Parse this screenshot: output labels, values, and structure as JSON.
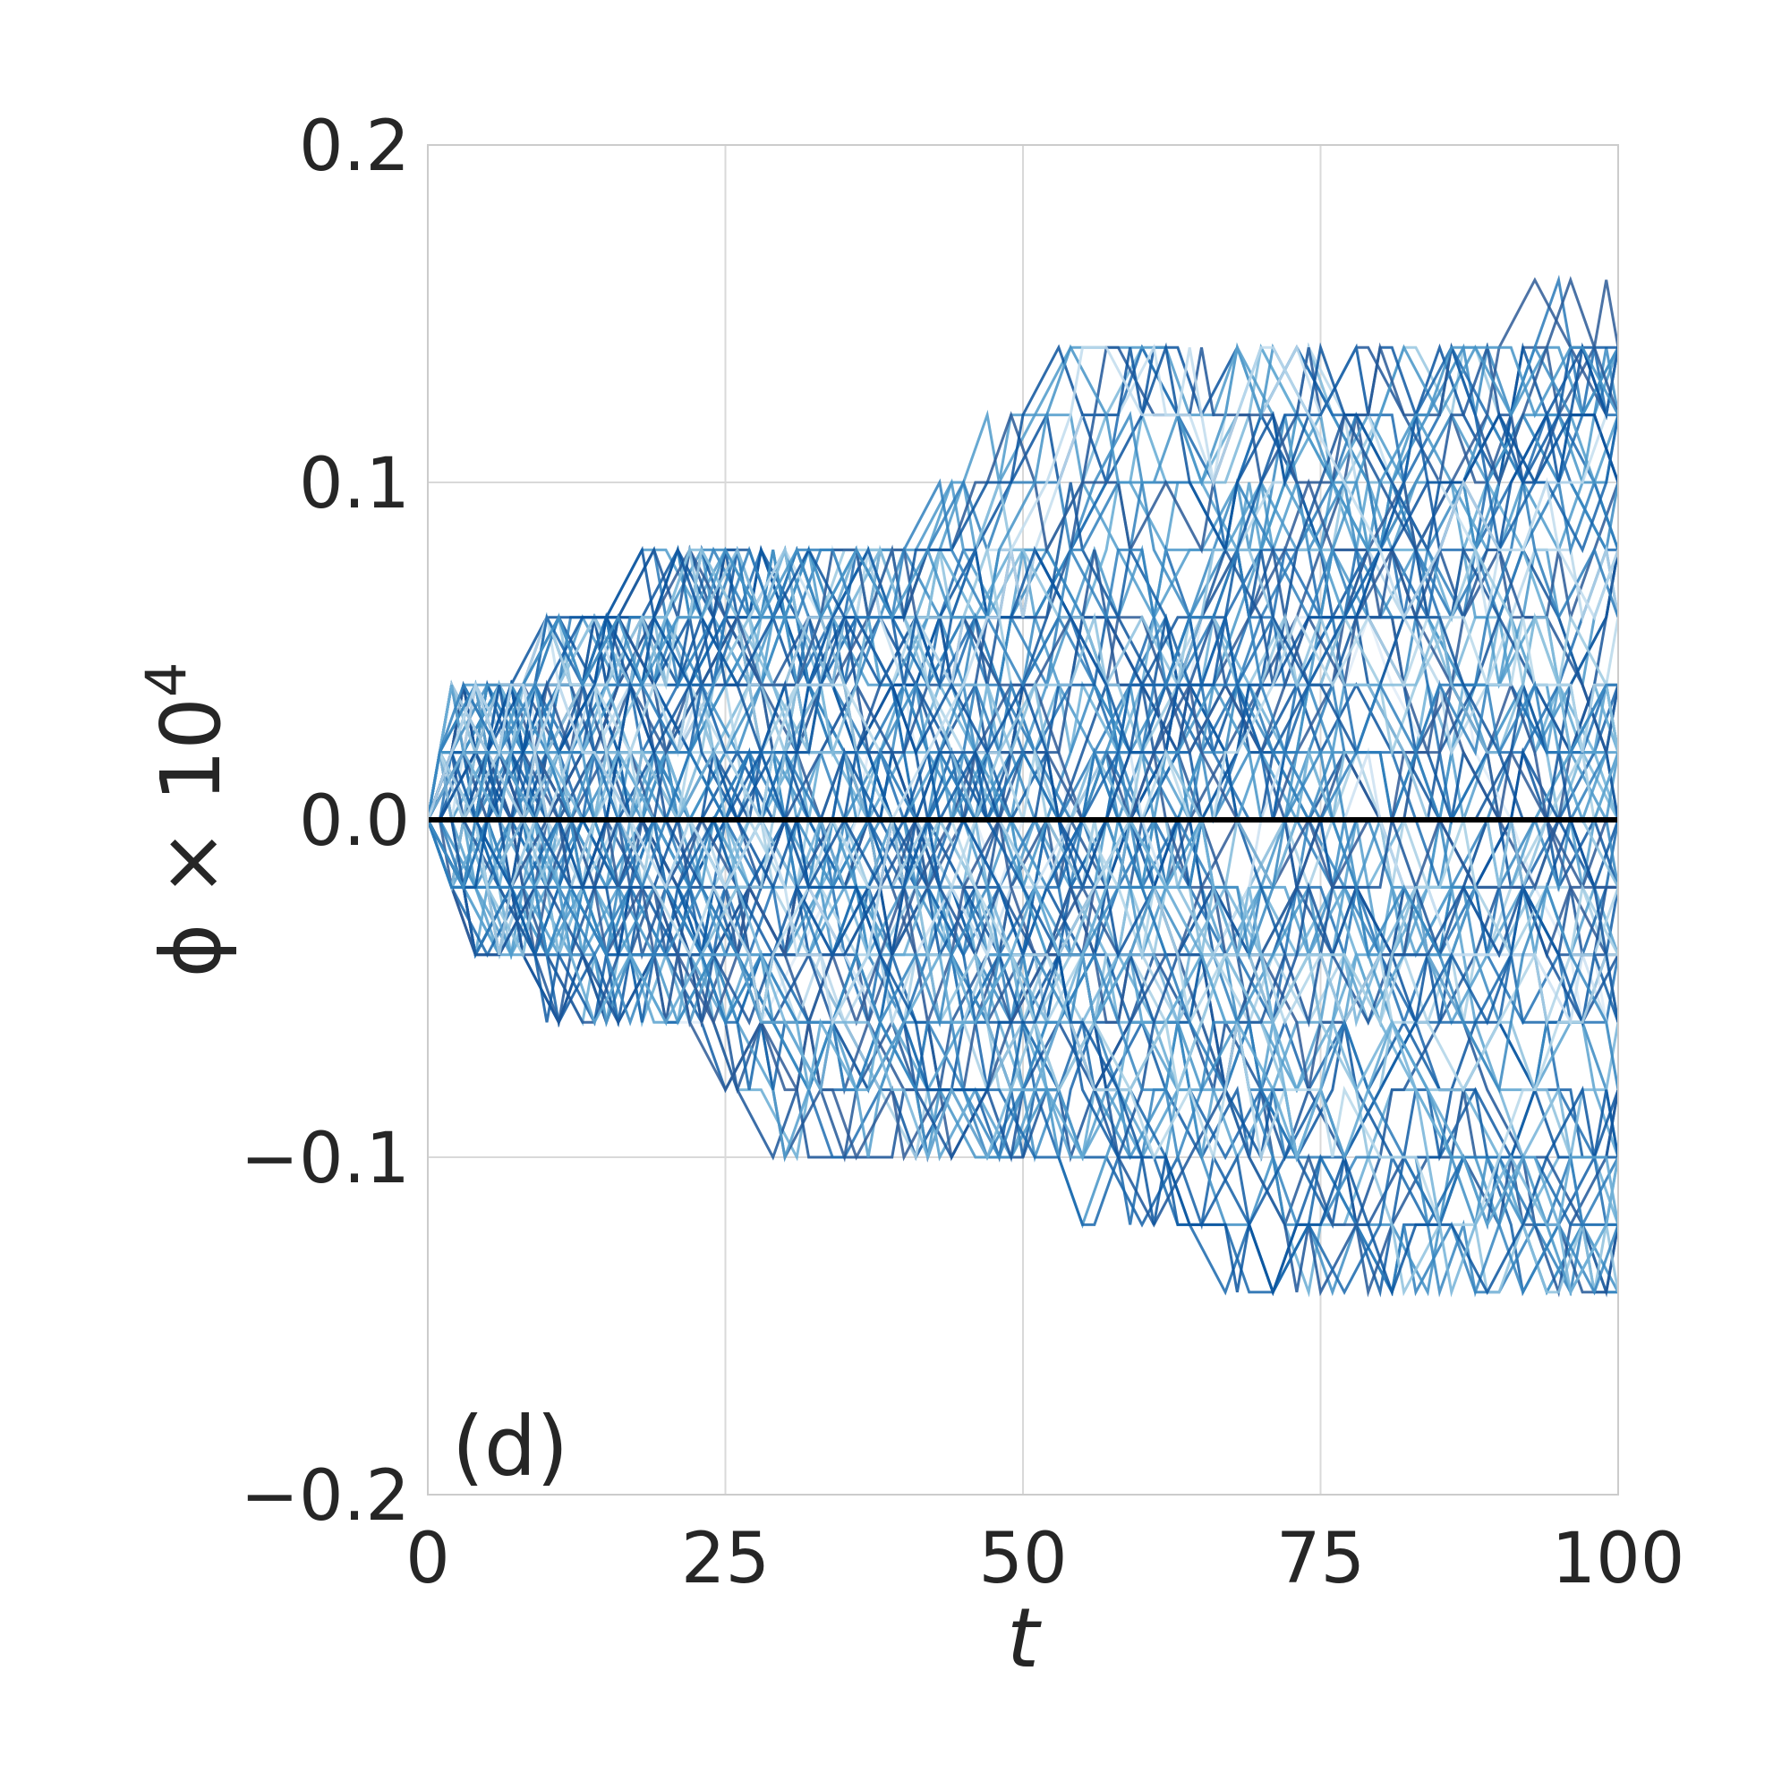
{
  "chart_data": {
    "type": "line",
    "panel_label": "(d)",
    "xlabel": "t",
    "ylabel_main": "ϕ × 10",
    "ylabel_sup": "4",
    "xlim": [
      0,
      100
    ],
    "ylim": [
      -0.2,
      0.2
    ],
    "xticks": [
      0,
      25,
      50,
      75,
      100
    ],
    "xtick_labels": [
      "0",
      "25",
      "50",
      "75",
      "100"
    ],
    "yticks": [
      -0.2,
      -0.1,
      0.0,
      0.1,
      0.2
    ],
    "ytick_labels": [
      "−0.2",
      "−0.1",
      "0.0",
      "0.1",
      "0.2"
    ],
    "grid": true,
    "legend": "none",
    "colormap": "Blues",
    "series_count": 100,
    "step": 0.02,
    "envelope_upper": [
      [
        0,
        0
      ],
      [
        2,
        0.04
      ],
      [
        10,
        0.06
      ],
      [
        18,
        0.08
      ],
      [
        31,
        0.08
      ],
      [
        43,
        0.1
      ],
      [
        50,
        0.14
      ],
      [
        90,
        0.14
      ],
      [
        92,
        0.16
      ],
      [
        100,
        0.16
      ]
    ],
    "envelope_lower": [
      [
        0,
        0
      ],
      [
        4,
        -0.04
      ],
      [
        9,
        -0.06
      ],
      [
        25,
        -0.08
      ],
      [
        29,
        -0.1
      ],
      [
        49,
        -0.1
      ],
      [
        55,
        -0.12
      ],
      [
        66,
        -0.14
      ],
      [
        100,
        -0.14
      ]
    ],
    "mean_line": {
      "x": [
        0,
        100
      ],
      "y": [
        0.0,
        0.0
      ],
      "color": "#000000"
    },
    "colors": {
      "axes_border": "#cccccc",
      "grid": "#d9d9d9",
      "text": "#262626"
    }
  }
}
